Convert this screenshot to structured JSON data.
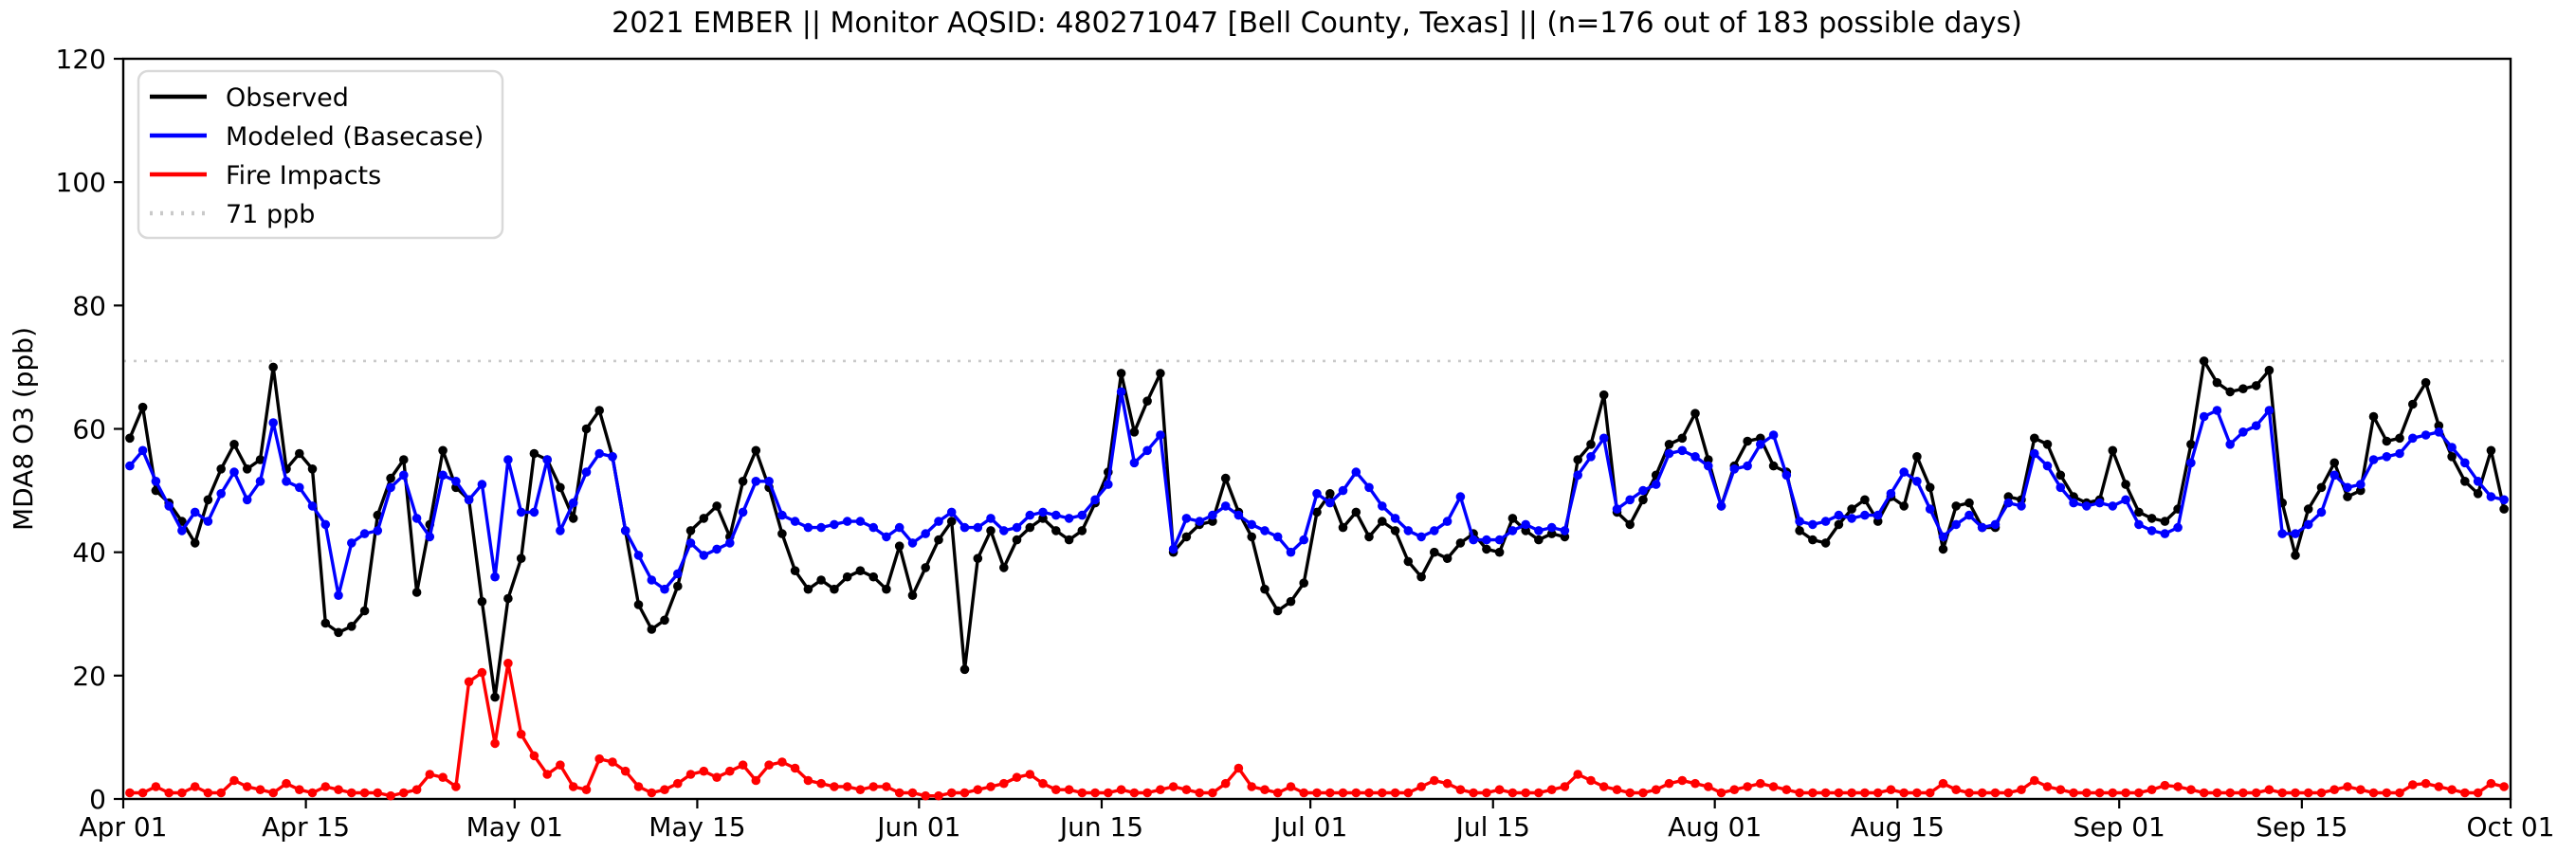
{
  "title": "2021 EMBER || Monitor AQSID: 480271047 [Bell County, Texas] || (n=176 out of 183 possible days)",
  "chart_data": {
    "type": "line",
    "ylabel": "MDA8 O3 (ppb)",
    "ylim": [
      0,
      120
    ],
    "yticks": [
      0,
      20,
      40,
      60,
      80,
      100,
      120
    ],
    "x_tick_labels": [
      "Apr 01",
      "Apr 15",
      "May 01",
      "May 15",
      "Jun 01",
      "Jun 15",
      "Jul 01",
      "Jul 15",
      "Aug 01",
      "Aug 15",
      "Sep 01",
      "Sep 15",
      "Oct 01"
    ],
    "x_tick_days": [
      0,
      14,
      30,
      44,
      61,
      75,
      91,
      105,
      122,
      136,
      153,
      167,
      183
    ],
    "x_range_days": 183,
    "grid": false,
    "legend_position": "upper-left",
    "threshold": {
      "value": 71,
      "label": "71 ppb",
      "color": "#c9c9c9"
    },
    "series": [
      {
        "name": "Observed",
        "color": "#000000",
        "values": [
          58.5,
          63.5,
          50,
          48,
          45,
          41.5,
          48.5,
          53.5,
          57.5,
          53.5,
          55,
          70,
          53.5,
          56,
          53.5,
          28.5,
          27,
          28,
          30.5,
          46,
          52,
          55,
          33.5,
          44.5,
          56.5,
          50.5,
          48.5,
          32,
          16.5,
          32.5,
          39,
          56,
          55,
          50.5,
          45.5,
          60,
          63,
          55.5,
          43.5,
          31.5,
          27.5,
          29,
          34.5,
          43.5,
          45.5,
          47.5,
          42.5,
          51.5,
          56.5,
          50.5,
          43,
          37,
          34,
          35.5,
          34,
          36,
          37,
          36,
          34,
          41,
          33,
          37.5,
          42,
          45,
          21,
          39,
          43.5,
          37.5,
          42,
          44,
          45.5,
          43.5,
          42,
          43.5,
          48,
          53,
          69,
          59.5,
          64.5,
          69,
          40,
          42.5,
          44.5,
          45,
          52,
          46.5,
          42.5,
          34,
          30.5,
          32,
          35,
          46.5,
          49.5,
          44,
          46.5,
          42.5,
          45,
          43.5,
          38.5,
          36,
          40,
          39,
          41.5,
          43,
          40.5,
          40,
          45.5,
          43.5,
          42,
          43,
          42.5,
          55,
          57.5,
          65.5,
          46.5,
          44.5,
          48.5,
          52.5,
          57.5,
          58.5,
          62.5,
          55,
          47.5,
          54,
          58,
          58.5,
          54,
          53,
          43.5,
          42,
          41.5,
          44.5,
          47,
          48.5,
          45,
          49,
          47.5,
          55.5,
          50.5,
          40.5,
          47.5,
          48,
          44,
          44,
          49,
          48.5,
          58.5,
          57.5,
          52.5,
          49,
          48,
          48.5,
          56.5,
          51,
          46.5,
          45.5,
          45,
          47,
          57.5,
          71,
          67.5,
          66,
          66.5,
          67,
          69.5,
          48,
          39.5,
          47,
          50.5,
          54.5,
          49,
          50,
          62,
          58,
          58.5,
          64,
          67.5,
          60.5,
          55.5,
          51.5,
          49.5,
          56.5,
          47
        ]
      },
      {
        "name": "Modeled (Basecase)",
        "color": "#0000ff",
        "values": [
          54,
          56.5,
          51.5,
          47.5,
          43.5,
          46.5,
          45,
          49.5,
          53,
          48.5,
          51.5,
          61,
          51.5,
          50.5,
          47.5,
          44.5,
          33,
          41.5,
          43,
          43.5,
          50.5,
          52.5,
          45.5,
          42.5,
          52.5,
          51.5,
          48.5,
          51,
          36,
          55,
          46.5,
          46.5,
          55,
          43.5,
          48,
          53,
          56,
          55.5,
          43.5,
          39.5,
          35.5,
          34,
          36.5,
          41.5,
          39.5,
          40.5,
          41.5,
          46.5,
          51.5,
          51.5,
          46,
          45,
          44,
          44,
          44.5,
          45,
          45,
          44,
          42.5,
          44,
          41.5,
          43,
          45,
          46.5,
          44,
          44,
          45.5,
          43.5,
          44,
          46,
          46.5,
          46,
          45.5,
          46,
          48.5,
          51,
          66,
          54.5,
          56.5,
          59,
          40.5,
          45.5,
          45,
          46,
          47.5,
          46,
          44.5,
          43.5,
          42.5,
          40,
          42,
          49.5,
          48,
          50,
          53,
          50.5,
          47.5,
          45.5,
          43.5,
          42.5,
          43.5,
          45,
          49,
          42,
          42,
          42,
          43.5,
          44.5,
          43.5,
          44,
          43.5,
          52.5,
          55.5,
          58.5,
          47,
          48.5,
          50,
          51,
          56,
          56.5,
          55.5,
          54,
          47.5,
          53.5,
          54,
          57.5,
          59,
          52.5,
          45,
          44.5,
          45,
          46,
          45.5,
          46,
          46,
          49.5,
          53,
          51.5,
          47,
          42.5,
          44.5,
          46,
          44,
          44.5,
          48,
          47.5,
          56,
          54,
          50.5,
          48,
          47.5,
          48,
          47.5,
          48.5,
          44.5,
          43.5,
          43,
          44,
          54.5,
          62,
          63,
          57.5,
          59.5,
          60.5,
          63,
          43,
          43,
          44.5,
          46.5,
          52.5,
          50.5,
          51,
          55,
          55.5,
          56,
          58.5,
          59,
          59.5,
          57,
          54.5,
          51.5,
          49,
          48.5
        ]
      },
      {
        "name": "Fire Impacts",
        "color": "#ff0000",
        "values": [
          1,
          1,
          2,
          1,
          1,
          2,
          1,
          1,
          3,
          2,
          1.5,
          1,
          2.5,
          1.5,
          1,
          2,
          1.5,
          1,
          1,
          1,
          0.5,
          1,
          1.5,
          4,
          3.5,
          2,
          19,
          20.5,
          9,
          22,
          10.5,
          7,
          4,
          5.5,
          2,
          1.5,
          6.5,
          6,
          4.5,
          2,
          1,
          1.5,
          2.5,
          4,
          4.5,
          3.5,
          4.5,
          5.5,
          3,
          5.5,
          6,
          5,
          3,
          2.5,
          2,
          2,
          1.5,
          2,
          2,
          1,
          1,
          0.5,
          0.5,
          1,
          1,
          1.5,
          2,
          2.5,
          3.5,
          4,
          2.5,
          1.5,
          1.5,
          1,
          1,
          1,
          1.5,
          1,
          1,
          1.5,
          2,
          1.5,
          1,
          1,
          2.5,
          5,
          2,
          1.5,
          1,
          2,
          1,
          1,
          1,
          1,
          1,
          1,
          1,
          1,
          1,
          2,
          3,
          2.5,
          1.5,
          1,
          1,
          1.5,
          1,
          1,
          1,
          1.5,
          2,
          4,
          3,
          2,
          1.5,
          1,
          1,
          1.5,
          2.5,
          3,
          2.5,
          2,
          1,
          1.5,
          2,
          2.5,
          2,
          1.5,
          1,
          1,
          1,
          1,
          1,
          1,
          1,
          1.5,
          1,
          1,
          1,
          2.5,
          1.5,
          1,
          1,
          1,
          1,
          1.5,
          3,
          2,
          1.5,
          1,
          1,
          1,
          1,
          1,
          1,
          1.5,
          2.2,
          2,
          1.5,
          1,
          1,
          1,
          1,
          1,
          1.5,
          1,
          1,
          1,
          1,
          1.5,
          2,
          1.5,
          1,
          1,
          1,
          2.3,
          2.5,
          2,
          1.5,
          1,
          1,
          2.5,
          2
        ]
      }
    ],
    "legend_entries": [
      "Observed",
      "Modeled (Basecase)",
      "Fire Impacts",
      "71 ppb"
    ]
  },
  "layout_note": "white background, black spines on all four sides, legend box upper-left"
}
